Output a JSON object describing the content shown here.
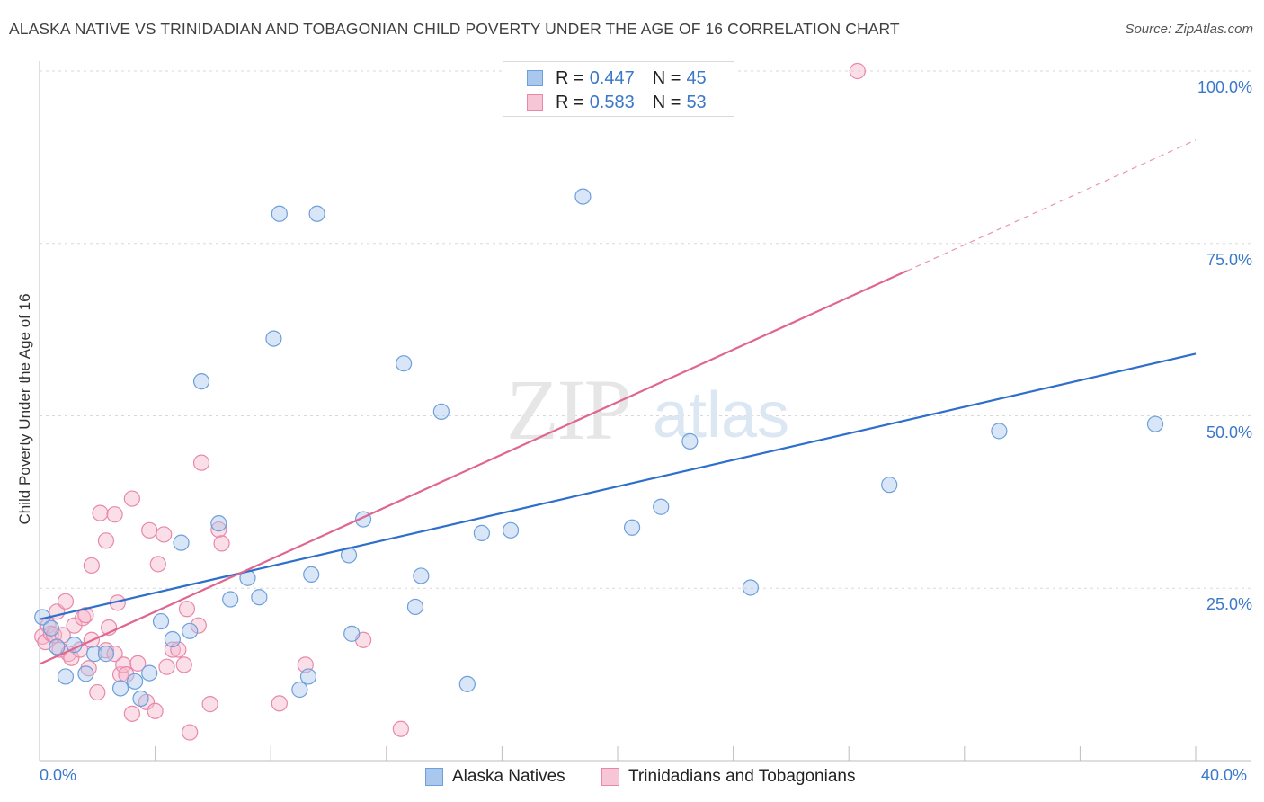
{
  "title": "ALASKA NATIVE VS TRINIDADIAN AND TOBAGONIAN CHILD POVERTY UNDER THE AGE OF 16 CORRELATION CHART",
  "source": "Source: ZipAtlas.com",
  "watermark": {
    "zip": "ZIP",
    "atlas": "atlas"
  },
  "colors": {
    "blue_fill": "#aac8ee",
    "blue_stroke": "#6d9fdb",
    "blue_line": "#2e6fcc",
    "pink_fill": "#f6b9cc",
    "pink_stroke": "#e888a8",
    "pink_line": "#e0668f",
    "tick_text": "#3a78c9",
    "grid": "#d8d8d8"
  },
  "legend": {
    "rows": [
      {
        "r_label": "R =",
        "r_value": "0.447",
        "n_label": "N =",
        "n_value": "45"
      },
      {
        "r_label": "R =",
        "r_value": "0.583",
        "n_label": "N =",
        "n_value": "53"
      }
    ]
  },
  "chart_data": {
    "type": "scatter",
    "title": "ALASKA NATIVE VS TRINIDADIAN AND TOBAGONIAN CHILD POVERTY UNDER THE AGE OF 16 CORRELATION CHART",
    "xlabel": "",
    "ylabel": "Child Poverty Under the Age of 16",
    "xlim": [
      0,
      40
    ],
    "ylim": [
      0,
      100
    ],
    "x_tick_labels": [
      "0.0%",
      "40.0%"
    ],
    "y_ticks": [
      25,
      50,
      75,
      100
    ],
    "y_tick_labels": [
      "25.0%",
      "50.0%",
      "75.0%",
      "100.0%"
    ],
    "grid": true,
    "series": [
      {
        "name": "Alaska Natives",
        "r": 0.447,
        "n": 45,
        "trend": {
          "x0": 0,
          "y0": 20.5,
          "x1": 40,
          "y1": 59.0,
          "dashed_from": null
        },
        "points": [
          [
            0.1,
            20.8
          ],
          [
            0.4,
            19.2
          ],
          [
            0.6,
            16.5
          ],
          [
            0.9,
            12.2
          ],
          [
            1.2,
            16.8
          ],
          [
            1.6,
            12.6
          ],
          [
            1.9,
            15.5
          ],
          [
            2.3,
            15.5
          ],
          [
            2.8,
            10.5
          ],
          [
            3.3,
            11.5
          ],
          [
            3.5,
            9.0
          ],
          [
            3.8,
            12.7
          ],
          [
            4.2,
            20.2
          ],
          [
            4.6,
            17.6
          ],
          [
            4.9,
            31.6
          ],
          [
            5.2,
            18.8
          ],
          [
            5.6,
            55.0
          ],
          [
            6.2,
            34.4
          ],
          [
            6.6,
            23.4
          ],
          [
            7.2,
            26.5
          ],
          [
            7.6,
            23.7
          ],
          [
            8.1,
            61.2
          ],
          [
            8.3,
            79.3
          ],
          [
            9.0,
            10.3
          ],
          [
            9.3,
            12.2
          ],
          [
            9.4,
            27.0
          ],
          [
            9.6,
            79.3
          ],
          [
            10.7,
            29.8
          ],
          [
            10.8,
            18.4
          ],
          [
            11.2,
            35.0
          ],
          [
            12.6,
            57.6
          ],
          [
            13.0,
            22.3
          ],
          [
            13.2,
            26.8
          ],
          [
            13.9,
            50.6
          ],
          [
            14.8,
            11.1
          ],
          [
            15.3,
            33.0
          ],
          [
            16.3,
            33.4
          ],
          [
            18.8,
            81.8
          ],
          [
            20.5,
            33.8
          ],
          [
            21.5,
            36.8
          ],
          [
            22.5,
            46.3
          ],
          [
            24.6,
            25.1
          ],
          [
            29.4,
            40.0
          ],
          [
            33.2,
            47.8
          ],
          [
            38.6,
            48.8
          ]
        ]
      },
      {
        "name": "Trinidadians and Tobagonians",
        "r": 0.583,
        "n": 53,
        "trend": {
          "x0": 0,
          "y0": 14.0,
          "x1": 40,
          "y1": 90.0,
          "dashed_from": 30.0
        },
        "points": [
          [
            0.1,
            18.0
          ],
          [
            0.2,
            17.2
          ],
          [
            0.3,
            19.6
          ],
          [
            0.4,
            18.4
          ],
          [
            0.5,
            18.2
          ],
          [
            0.6,
            21.6
          ],
          [
            0.7,
            16.1
          ],
          [
            0.8,
            18.2
          ],
          [
            0.9,
            23.1
          ],
          [
            1.0,
            15.5
          ],
          [
            1.1,
            14.9
          ],
          [
            1.2,
            19.6
          ],
          [
            1.4,
            16.1
          ],
          [
            1.5,
            20.7
          ],
          [
            1.6,
            21.1
          ],
          [
            1.7,
            13.4
          ],
          [
            1.8,
            17.5
          ],
          [
            1.8,
            28.3
          ],
          [
            2.0,
            9.9
          ],
          [
            2.1,
            35.9
          ],
          [
            2.3,
            31.9
          ],
          [
            2.3,
            16.0
          ],
          [
            2.4,
            19.3
          ],
          [
            2.6,
            15.5
          ],
          [
            2.6,
            35.7
          ],
          [
            2.7,
            22.9
          ],
          [
            2.8,
            12.5
          ],
          [
            2.9,
            13.9
          ],
          [
            3.0,
            12.5
          ],
          [
            3.2,
            6.8
          ],
          [
            3.2,
            38.0
          ],
          [
            3.4,
            14.1
          ],
          [
            3.7,
            8.5
          ],
          [
            3.8,
            33.4
          ],
          [
            4.0,
            7.2
          ],
          [
            4.1,
            28.5
          ],
          [
            4.3,
            32.8
          ],
          [
            4.4,
            13.6
          ],
          [
            4.6,
            16.1
          ],
          [
            4.8,
            16.1
          ],
          [
            5.0,
            13.9
          ],
          [
            5.1,
            22.0
          ],
          [
            5.2,
            4.1
          ],
          [
            5.5,
            19.6
          ],
          [
            5.6,
            43.2
          ],
          [
            5.9,
            8.2
          ],
          [
            6.2,
            33.5
          ],
          [
            6.3,
            31.5
          ],
          [
            8.3,
            8.3
          ],
          [
            9.2,
            13.9
          ],
          [
            11.2,
            17.5
          ],
          [
            12.5,
            4.6
          ],
          [
            28.3,
            100.0
          ]
        ]
      }
    ]
  }
}
